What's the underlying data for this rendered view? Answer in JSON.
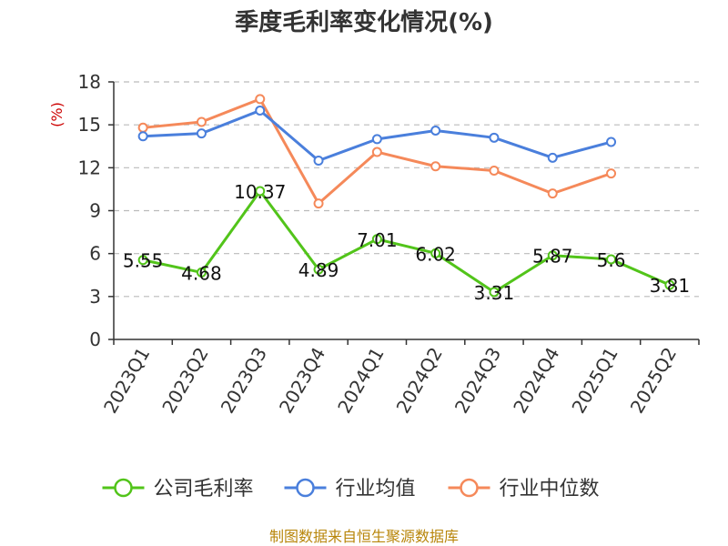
{
  "chart_data": {
    "type": "line",
    "title": "季度毛利率变化情况(%)",
    "unit": "(%)",
    "categories": [
      "2023Q1",
      "2023Q2",
      "2023Q3",
      "2023Q4",
      "2024Q1",
      "2024Q2",
      "2024Q3",
      "2024Q4",
      "2025Q1",
      "2025Q2"
    ],
    "ylim": [
      0,
      18
    ],
    "yticks": [
      0,
      3,
      6,
      9,
      12,
      15,
      18
    ],
    "grid": "horizontal dashed",
    "legend_position": "bottom",
    "series": [
      {
        "name": "公司毛利率",
        "color": "#52c41a",
        "values": [
          5.55,
          4.68,
          10.37,
          4.89,
          7.01,
          6.02,
          3.31,
          5.87,
          5.6,
          3.81
        ],
        "labels": [
          "5.55",
          "4.68",
          "10.37",
          "4.89",
          "7.01",
          "6.02",
          "3.31",
          "5.87",
          "5.6",
          "3.81"
        ]
      },
      {
        "name": "行业均值",
        "color": "#4a7fdc",
        "values": [
          14.2,
          14.4,
          16.0,
          12.5,
          14.0,
          14.6,
          14.1,
          12.7,
          13.8,
          null
        ]
      },
      {
        "name": "行业中位数",
        "color": "#f5895a",
        "values": [
          14.8,
          15.2,
          16.8,
          9.5,
          13.1,
          12.1,
          11.8,
          10.2,
          11.6,
          null
        ]
      }
    ]
  },
  "source": "制图数据来自恒生聚源数据库"
}
